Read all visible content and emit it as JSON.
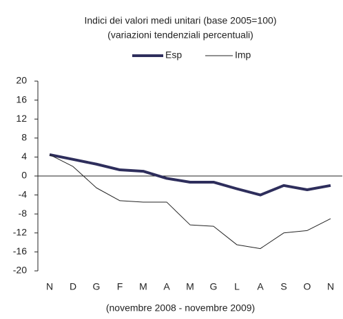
{
  "chart_data": {
    "type": "line",
    "title": "Indici dei valori medi unitari (base 2005=100)",
    "subtitle": "(variazioni tendenziali percentuali)",
    "x_label": "(novembre 2008 - novembre 2009)",
    "categories": [
      "N",
      "D",
      "G",
      "F",
      "M",
      "A",
      "M",
      "G",
      "L",
      "A",
      "S",
      "O",
      "N"
    ],
    "series": [
      {
        "name": "Esp",
        "color": "#2e2e5c",
        "values": [
          4.5,
          3.5,
          2.5,
          1.3,
          1.0,
          -0.5,
          -1.3,
          -1.3,
          -2.7,
          -4.0,
          -2.0,
          -2.9,
          -2.0
        ]
      },
      {
        "name": "Imp",
        "color": "#222222",
        "values": [
          4.5,
          2.0,
          -2.5,
          -5.2,
          -5.5,
          -5.5,
          -10.3,
          -10.6,
          -14.5,
          -15.3,
          -12.0,
          -11.5,
          -9.0
        ]
      }
    ],
    "ylim": [
      -20,
      20
    ],
    "yticks": [
      -20,
      -16,
      -12,
      -8,
      -4,
      0,
      4,
      8,
      12,
      16,
      20
    ],
    "legend": "top"
  }
}
